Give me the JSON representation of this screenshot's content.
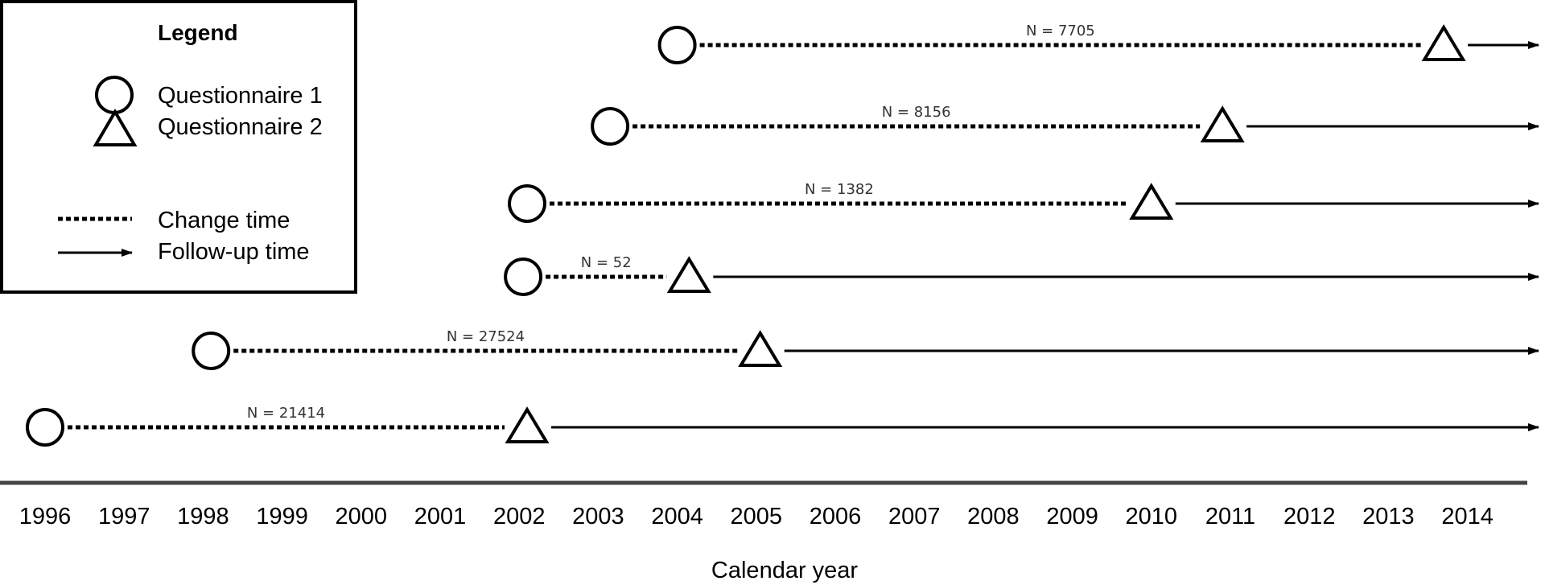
{
  "legend": {
    "title": "Legend",
    "items": [
      {
        "symbol": "circle",
        "label": "Questionnaire 1"
      },
      {
        "symbol": "triangle",
        "label": "Questionnaire 2"
      },
      {
        "symbol": "dotted-line",
        "label": "Change time"
      },
      {
        "symbol": "arrow",
        "label": "Follow-up time"
      }
    ]
  },
  "axis": {
    "xlabel": "Calendar year",
    "years": [
      "1996",
      "1997",
      "1998",
      "1999",
      "2000",
      "2001",
      "2002",
      "2003",
      "2004",
      "2005",
      "2006",
      "2007",
      "2008",
      "2009",
      "2010",
      "2011",
      "2012",
      "2013",
      "2014"
    ]
  },
  "cohorts": [
    {
      "n_label": "N = 7705",
      "q1_year": 2004.0,
      "q2_year": 2013.7
    },
    {
      "n_label": "N = 8156",
      "q1_year": 2003.15,
      "q2_year": 2010.9
    },
    {
      "n_label": "N = 1382",
      "q1_year": 2002.1,
      "q2_year": 2010.0
    },
    {
      "n_label": "N = 52",
      "q1_year": 2002.05,
      "q2_year": 2004.15
    },
    {
      "n_label": "N = 27524",
      "q1_year": 1998.1,
      "q2_year": 2005.05
    },
    {
      "n_label": "N = 21414",
      "q1_year": 1996.0,
      "q2_year": 2002.1
    }
  ],
  "follow_up_end_year": 2014.9
}
